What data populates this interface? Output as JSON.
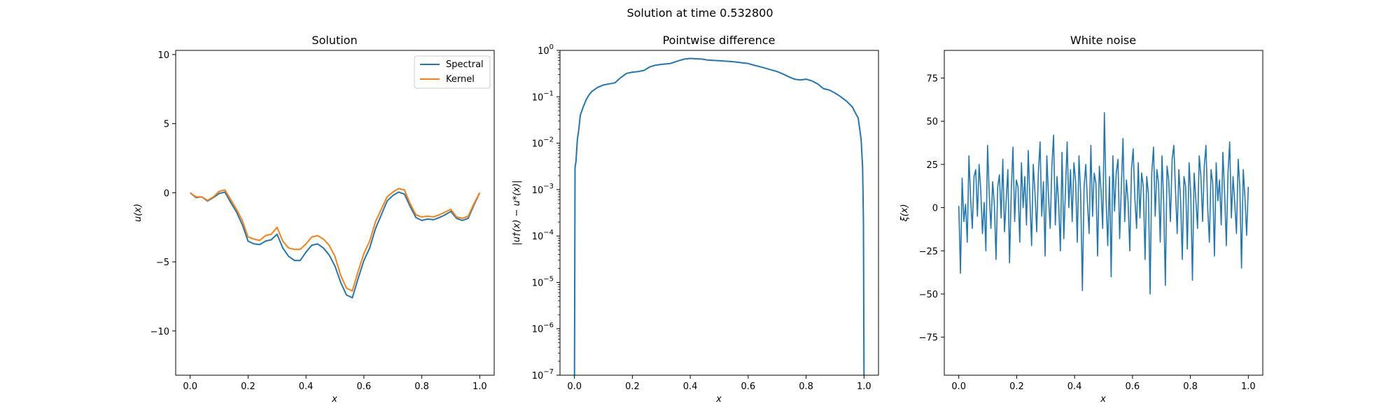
{
  "suptitle": "Solution at time 0.532800",
  "panels": {
    "solution": {
      "title": "Solution",
      "xlabel": "x",
      "ylabel": "u(x)",
      "xticks": [
        "0.0",
        "0.2",
        "0.4",
        "0.6",
        "0.8",
        "1.0"
      ],
      "yticks": [
        "−10",
        "−5",
        "0",
        "5",
        "10"
      ],
      "legend": [
        "Spectral",
        "Kernel"
      ]
    },
    "difference": {
      "title": "Pointwise difference",
      "xlabel": "x",
      "ylabel": "|u†(x) − u*(x)|",
      "xticks": [
        "0.0",
        "0.2",
        "0.4",
        "0.6",
        "0.8",
        "1.0"
      ],
      "yticks": [
        {
          "base": "10",
          "exp": "−7"
        },
        {
          "base": "10",
          "exp": "−6"
        },
        {
          "base": "10",
          "exp": "−5"
        },
        {
          "base": "10",
          "exp": "−4"
        },
        {
          "base": "10",
          "exp": "−3"
        },
        {
          "base": "10",
          "exp": "−2"
        },
        {
          "base": "10",
          "exp": "−1"
        },
        {
          "base": "10",
          "exp": "0"
        }
      ]
    },
    "noise": {
      "title": "White noise",
      "xlabel": "x",
      "ylabel": "ξ(x)",
      "xticks": [
        "0.0",
        "0.2",
        "0.4",
        "0.6",
        "0.8",
        "1.0"
      ],
      "yticks": [
        "−75",
        "−50",
        "−25",
        "0",
        "25",
        "50",
        "75"
      ]
    }
  },
  "colors": {
    "spectral": "#1f77b4",
    "kernel": "#ff7f0e",
    "axes": "#000000"
  },
  "chart_data": [
    {
      "type": "line",
      "title": "Solution",
      "xlabel": "x",
      "ylabel": "u(x)",
      "xlim": [
        -0.05,
        1.05
      ],
      "ylim": [
        -13.2,
        10.3
      ],
      "legend_position": "top-right",
      "x": [
        0.0,
        0.02,
        0.04,
        0.06,
        0.08,
        0.1,
        0.12,
        0.14,
        0.16,
        0.18,
        0.2,
        0.22,
        0.24,
        0.26,
        0.28,
        0.3,
        0.32,
        0.34,
        0.36,
        0.38,
        0.4,
        0.42,
        0.44,
        0.46,
        0.48,
        0.5,
        0.52,
        0.54,
        0.56,
        0.58,
        0.6,
        0.62,
        0.64,
        0.66,
        0.68,
        0.7,
        0.72,
        0.74,
        0.76,
        0.78,
        0.8,
        0.82,
        0.84,
        0.86,
        0.88,
        0.9,
        0.92,
        0.94,
        0.96,
        0.98,
        1.0
      ],
      "series": [
        {
          "name": "Spectral",
          "values": [
            0.0,
            -0.35,
            -0.3,
            -0.6,
            -0.35,
            -0.05,
            0.05,
            -0.7,
            -1.4,
            -2.3,
            -3.5,
            -3.7,
            -3.75,
            -3.5,
            -3.4,
            -3.0,
            -4.0,
            -4.6,
            -4.9,
            -4.9,
            -4.3,
            -3.8,
            -3.7,
            -4.0,
            -4.5,
            -5.3,
            -6.5,
            -7.4,
            -7.6,
            -6.2,
            -4.9,
            -4.0,
            -2.6,
            -1.6,
            -0.6,
            -0.2,
            0.05,
            -0.1,
            -1.0,
            -1.8,
            -2.0,
            -1.9,
            -1.95,
            -1.8,
            -1.6,
            -1.35,
            -1.85,
            -2.0,
            -1.85,
            -0.9,
            0.0
          ]
        },
        {
          "name": "Kernel",
          "values": [
            0.0,
            -0.3,
            -0.3,
            -0.55,
            -0.3,
            0.1,
            0.2,
            -0.5,
            -1.2,
            -2.0,
            -3.2,
            -3.35,
            -3.45,
            -3.1,
            -3.0,
            -2.5,
            -3.5,
            -4.0,
            -4.1,
            -4.1,
            -3.7,
            -3.2,
            -3.1,
            -3.35,
            -3.8,
            -4.6,
            -6.0,
            -6.9,
            -7.1,
            -5.7,
            -4.4,
            -3.5,
            -2.1,
            -1.2,
            -0.3,
            0.05,
            0.3,
            0.2,
            -0.8,
            -1.6,
            -1.75,
            -1.7,
            -1.75,
            -1.6,
            -1.4,
            -1.2,
            -1.75,
            -1.85,
            -1.7,
            -0.8,
            0.0
          ]
        }
      ]
    },
    {
      "type": "line",
      "title": "Pointwise difference",
      "xlabel": "x",
      "ylabel": "|u†(x) − u*(x)|",
      "xlim": [
        -0.05,
        1.05
      ],
      "ylim": [
        1e-07,
        1
      ],
      "yscale": "log",
      "x": [
        0.0,
        0.002,
        0.005,
        0.01,
        0.015,
        0.02,
        0.03,
        0.04,
        0.05,
        0.06,
        0.08,
        0.1,
        0.12,
        0.14,
        0.16,
        0.18,
        0.2,
        0.22,
        0.24,
        0.26,
        0.28,
        0.3,
        0.33,
        0.36,
        0.38,
        0.4,
        0.42,
        0.44,
        0.46,
        0.5,
        0.55,
        0.6,
        0.62,
        0.65,
        0.68,
        0.7,
        0.72,
        0.74,
        0.76,
        0.78,
        0.8,
        0.82,
        0.84,
        0.86,
        0.88,
        0.9,
        0.92,
        0.94,
        0.96,
        0.97,
        0.98,
        0.99,
        0.995,
        0.998,
        1.0
      ],
      "series": [
        {
          "name": "",
          "values": [
            1e-07,
            0.003,
            0.004,
            0.012,
            0.02,
            0.04,
            0.06,
            0.085,
            0.11,
            0.13,
            0.16,
            0.18,
            0.19,
            0.2,
            0.26,
            0.32,
            0.34,
            0.35,
            0.37,
            0.44,
            0.48,
            0.5,
            0.52,
            0.6,
            0.65,
            0.67,
            0.66,
            0.65,
            0.62,
            0.6,
            0.57,
            0.52,
            0.48,
            0.43,
            0.38,
            0.35,
            0.31,
            0.27,
            0.24,
            0.23,
            0.24,
            0.22,
            0.19,
            0.15,
            0.14,
            0.12,
            0.1,
            0.08,
            0.06,
            0.045,
            0.035,
            0.012,
            0.003,
            0.0002,
            1e-07
          ]
        }
      ]
    },
    {
      "type": "line",
      "title": "White noise",
      "xlabel": "x",
      "ylabel": "ξ(x)",
      "xlim": [
        -0.05,
        1.05
      ],
      "ylim": [
        -97,
        91
      ],
      "x_start": 0.0,
      "x_end": 1.0,
      "series": [
        {
          "name": "",
          "values": [
            1,
            -38,
            17,
            -8,
            2,
            -20,
            30,
            5,
            -12,
            18,
            22,
            -5,
            25,
            10,
            -15,
            3,
            -25,
            36,
            8,
            -12,
            15,
            2,
            -30,
            12,
            19,
            -6,
            28,
            -14,
            4,
            22,
            -32,
            10,
            35,
            -8,
            16,
            12,
            -20,
            26,
            0,
            18,
            -10,
            33,
            5,
            -22,
            25,
            9,
            -14,
            20,
            38,
            -5,
            15,
            -28,
            30,
            6,
            -12,
            24,
            42,
            -10,
            18,
            2,
            -25,
            32,
            -18,
            10,
            38,
            0,
            22,
            -8,
            26,
            15,
            -20,
            30,
            8,
            -48,
            12,
            25,
            3,
            -15,
            36,
            -5,
            20,
            14,
            -28,
            24,
            10,
            -12,
            55,
            5,
            -22,
            18,
            -40,
            30,
            -2,
            20,
            28,
            -18,
            12,
            40,
            -8,
            16,
            3,
            -25,
            22,
            34,
            5,
            -12,
            26,
            -6,
            20,
            12,
            -30,
            18,
            8,
            -50,
            20,
            35,
            -5,
            22,
            14,
            -20,
            30,
            3,
            -45,
            24,
            16,
            -8,
            28,
            36,
            10,
            -15,
            22,
            4,
            -30,
            18,
            12,
            -24,
            26,
            8,
            -42,
            20,
            5,
            -12,
            30,
            18,
            -8,
            24,
            36,
            0,
            -20,
            22,
            14,
            -28,
            26,
            4,
            16,
            -10,
            32,
            8,
            -22,
            20,
            38,
            -6,
            18,
            2,
            -15,
            28,
            12,
            -35,
            22,
            6,
            -16,
            12
          ]
        }
      ]
    }
  ]
}
